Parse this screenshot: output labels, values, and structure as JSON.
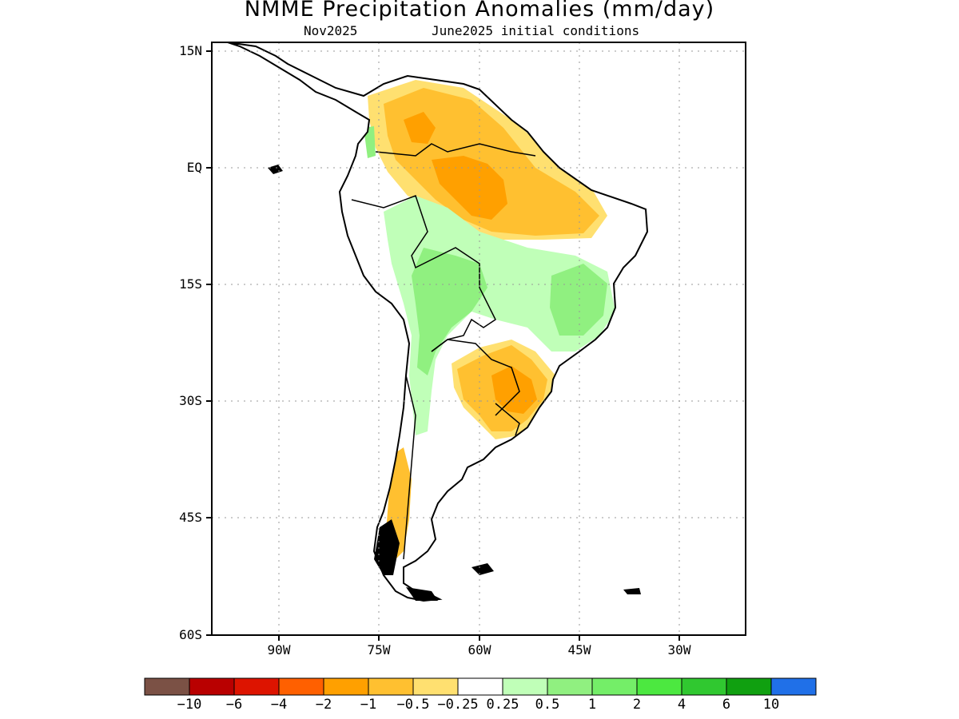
{
  "title": "NMME Precipitation Anomalies (mm/day)",
  "subtitle_left": "Nov2025",
  "subtitle_right": "June2025 initial conditions",
  "lat_labels": [
    "15N",
    "EQ",
    "15S",
    "30S",
    "45S",
    "60S"
  ],
  "lon_labels": [
    "90W",
    "75W",
    "60W",
    "45W",
    "30W"
  ],
  "colorbar": {
    "colors": [
      "#7b5145",
      "#b90000",
      "#dd1400",
      "#ff6000",
      "#ffa000",
      "#ffc030",
      "#ffe070",
      "#ffffff",
      "#c0ffb8",
      "#90f080",
      "#74ee68",
      "#4ce840",
      "#30c830",
      "#10a010",
      "#2070e8"
    ],
    "labels": [
      "−10",
      "−6",
      "−4",
      "−2",
      "−1",
      "−0.5",
      "−0.25",
      "0.25",
      "0.5",
      "1",
      "2",
      "4",
      "6",
      "10"
    ]
  },
  "map_data": {
    "type": "filled-contour-map",
    "region": "South America",
    "lon_range": [
      -100,
      -20
    ],
    "lat_range": [
      -60,
      15
    ],
    "grid": true,
    "features": {
      "coastline": true,
      "country_borders": true
    }
  }
}
